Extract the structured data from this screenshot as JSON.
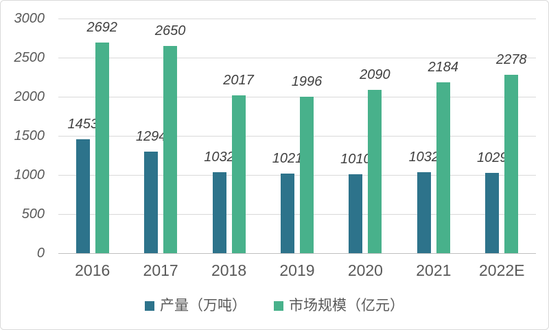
{
  "chart_data": {
    "type": "bar",
    "title": "",
    "categories": [
      "2016",
      "2017",
      "2018",
      "2019",
      "2020",
      "2021",
      "2022E"
    ],
    "series": [
      {
        "key": "production",
        "name": "产量（万吨）",
        "color": "#2d738b",
        "values": [
          1453,
          1294,
          1032,
          1021,
          1010,
          1032,
          1029
        ]
      },
      {
        "key": "market-size",
        "name": "市场规模（亿元）",
        "color": "#48b18b",
        "values": [
          2692,
          2650,
          2017,
          1996,
          2090,
          2184,
          2278
        ]
      }
    ],
    "xlabel": "",
    "ylabel": "",
    "ylim": [
      0,
      3000
    ],
    "yticks": [
      0,
      500,
      1000,
      1500,
      2000,
      2500,
      3000
    ],
    "grid": true,
    "legend_position": "bottom",
    "colors": {
      "gridline": "#d9d9d9",
      "axis_line": "#bfbfbf",
      "tick_text": "#595959",
      "value_text": "#404040",
      "frame_border": "#d9d9d9"
    }
  }
}
